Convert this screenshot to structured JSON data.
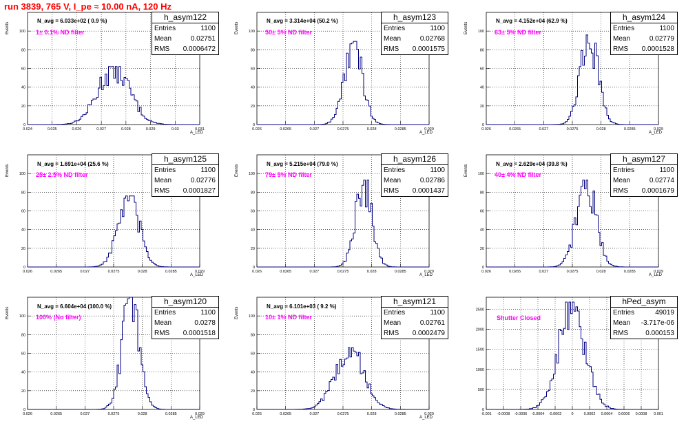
{
  "run_title": "run 3839,   765 V, I_pe ≈ 10.00 nA, 120 Hz",
  "colors": {
    "title": "#ff0000",
    "filter_label": "#ff00ff",
    "histogram": "#000080",
    "frame": "#000000"
  },
  "chart_data": [
    {
      "type": "bar",
      "title": "h_asym122",
      "ylabel": "Events",
      "xlabel": "A_LED",
      "annotation_navg": "N_avg = 6.033e+02 ( 0.9 %)",
      "annotation_filter": "1± 0.1% ND filter",
      "stats": {
        "entries": "1100",
        "mean": "0.02751",
        "rms": "0.0006472"
      },
      "xlim": [
        0.024,
        0.031
      ],
      "ylim": [
        0,
        120
      ],
      "xticks": [
        "0.024",
        "0.025",
        "0.026",
        "0.027",
        "0.028",
        "0.029",
        "0.03",
        "0.031"
      ],
      "yticks": [
        "0",
        "20",
        "40",
        "60",
        "80",
        "100"
      ],
      "grid": true,
      "mean": 0.02751,
      "rms": 0.0006472,
      "entries": 1100,
      "peak": 62
    },
    {
      "type": "bar",
      "title": "h_asym123",
      "ylabel": "Events",
      "xlabel": "A_LED",
      "annotation_navg": "N_avg = 3.314e+04 (50.2 %)",
      "annotation_filter": "50± 5% ND filter",
      "stats": {
        "entries": "1100",
        "mean": "0.02768",
        "rms": "0.0001575"
      },
      "xlim": [
        0.026,
        0.029
      ],
      "ylim": [
        0,
        120
      ],
      "xticks": [
        "0.026",
        "0.0265",
        "0.027",
        "0.0275",
        "0.028",
        "0.0285",
        "0.029"
      ],
      "yticks": [
        "0",
        "20",
        "40",
        "60",
        "80",
        "100"
      ],
      "grid": true,
      "mean": 0.02768,
      "rms": 0.0001575,
      "entries": 1100,
      "peak": 89
    },
    {
      "type": "bar",
      "title": "h_asym124",
      "ylabel": "Events",
      "xlabel": "A_LED",
      "annotation_navg": "N_avg = 4.152e+04 (62.9 %)",
      "annotation_filter": "63± 5% ND filter",
      "stats": {
        "entries": "1100",
        "mean": "0.02779",
        "rms": "0.0001528"
      },
      "xlim": [
        0.026,
        0.029
      ],
      "ylim": [
        0,
        120
      ],
      "xticks": [
        "0.026",
        "0.0265",
        "0.027",
        "0.0275",
        "0.028",
        "0.0285",
        "0.029"
      ],
      "yticks": [
        "0",
        "20",
        "40",
        "60",
        "80",
        "100"
      ],
      "grid": true,
      "mean": 0.02779,
      "rms": 0.0001528,
      "entries": 1100,
      "peak": 97
    },
    {
      "type": "bar",
      "title": "h_asym125",
      "ylabel": "Events",
      "xlabel": "A_LED",
      "annotation_navg": "N_avg = 1.691e+04 (25.6 %)",
      "annotation_filter": "25± 2.5% ND filter",
      "stats": {
        "entries": "1100",
        "mean": "0.02776",
        "rms": "0.0001827"
      },
      "xlim": [
        0.026,
        0.029
      ],
      "ylim": [
        0,
        120
      ],
      "xticks": [
        "0.026",
        "0.0265",
        "0.027",
        "0.0275",
        "0.028",
        "0.0285",
        "0.029"
      ],
      "yticks": [
        "0",
        "20",
        "40",
        "60",
        "80",
        "100"
      ],
      "grid": true,
      "mean": 0.02776,
      "rms": 0.0001827,
      "entries": 1100,
      "peak": 76
    },
    {
      "type": "bar",
      "title": "h_asym126",
      "ylabel": "Events",
      "xlabel": "A_LED",
      "annotation_navg": "N_avg = 5.215e+04 (79.0 %)",
      "annotation_filter": "79± 5% ND filter",
      "stats": {
        "entries": "1100",
        "mean": "0.02786",
        "rms": "0.0001437"
      },
      "xlim": [
        0.026,
        0.029
      ],
      "ylim": [
        0,
        120
      ],
      "xticks": [
        "0.026",
        "0.0265",
        "0.027",
        "0.0275",
        "0.028",
        "0.0285",
        "0.029"
      ],
      "yticks": [
        "0",
        "20",
        "40",
        "60",
        "80",
        "100"
      ],
      "grid": true,
      "mean": 0.02786,
      "rms": 0.0001437,
      "entries": 1100,
      "peak": 93
    },
    {
      "type": "bar",
      "title": "h_asym127",
      "ylabel": "Events",
      "xlabel": "A_LED",
      "annotation_navg": "N_avg = 2.629e+04 (39.8 %)",
      "annotation_filter": "40± 4% ND filter",
      "stats": {
        "entries": "1100",
        "mean": "0.02774",
        "rms": "0.0001679"
      },
      "xlim": [
        0.026,
        0.029
      ],
      "ylim": [
        0,
        120
      ],
      "xticks": [
        "0.026",
        "0.0265",
        "0.027",
        "0.0275",
        "0.028",
        "0.0285",
        "0.029"
      ],
      "yticks": [
        "0",
        "20",
        "40",
        "60",
        "80",
        "100"
      ],
      "grid": true,
      "mean": 0.02774,
      "rms": 0.0001679,
      "entries": 1100,
      "peak": 93
    },
    {
      "type": "bar",
      "title": "h_asym120",
      "ylabel": "Events",
      "xlabel": "A_LED",
      "annotation_navg": "N_avg = 6.604e+04 (100.0 %)",
      "annotation_filter": "100% (No filter)",
      "stats": {
        "entries": "1100",
        "mean": "0.0278",
        "rms": "0.0001518"
      },
      "xlim": [
        0.026,
        0.029
      ],
      "ylim": [
        0,
        120
      ],
      "xticks": [
        "0.026",
        "0.0265",
        "0.027",
        "0.0275",
        "0.028",
        "0.0285",
        "0.029"
      ],
      "yticks": [
        "0",
        "20",
        "40",
        "60",
        "80",
        "100"
      ],
      "grid": true,
      "mean": 0.0278,
      "rms": 0.0001518,
      "entries": 1100,
      "peak": 120
    },
    {
      "type": "bar",
      "title": "h_asym121",
      "ylabel": "Events",
      "xlabel": "A_LED",
      "annotation_navg": "N_avg = 6.101e+03 ( 9.2 %)",
      "annotation_filter": "10± 1% ND filter",
      "stats": {
        "entries": "1100",
        "mean": "0.02761",
        "rms": "0.0002479"
      },
      "xlim": [
        0.026,
        0.029
      ],
      "ylim": [
        0,
        120
      ],
      "xticks": [
        "0.026",
        "0.0265",
        "0.027",
        "0.0275",
        "0.028",
        "0.0285",
        "0.029"
      ],
      "yticks": [
        "0",
        "20",
        "40",
        "60",
        "80",
        "100"
      ],
      "grid": true,
      "mean": 0.02761,
      "rms": 0.0002479,
      "entries": 1100,
      "peak": 66
    },
    {
      "type": "bar",
      "title": "hPed_asym",
      "ylabel": "",
      "xlabel": "",
      "annotation_navg": "",
      "annotation_filter": "Shutter Closed",
      "stats": {
        "entries": "49019",
        "mean": "-3.717e-06",
        "rms": "0.000153"
      },
      "xlim": [
        -0.001,
        0.001
      ],
      "ylim": [
        0,
        2800
      ],
      "xticks": [
        "-0.001",
        "-0.0008",
        "-0.0006",
        "-0.0004",
        "-0.0002",
        "0",
        "0.0002",
        "0.0004",
        "0.0006",
        "0.0008",
        "0.001"
      ],
      "yticks": [
        "0",
        "500",
        "1000",
        "1500",
        "2000",
        "2500"
      ],
      "grid": true,
      "mean": -3.717e-06,
      "rms": 0.000153,
      "entries": 49019,
      "peak": 2680
    }
  ]
}
